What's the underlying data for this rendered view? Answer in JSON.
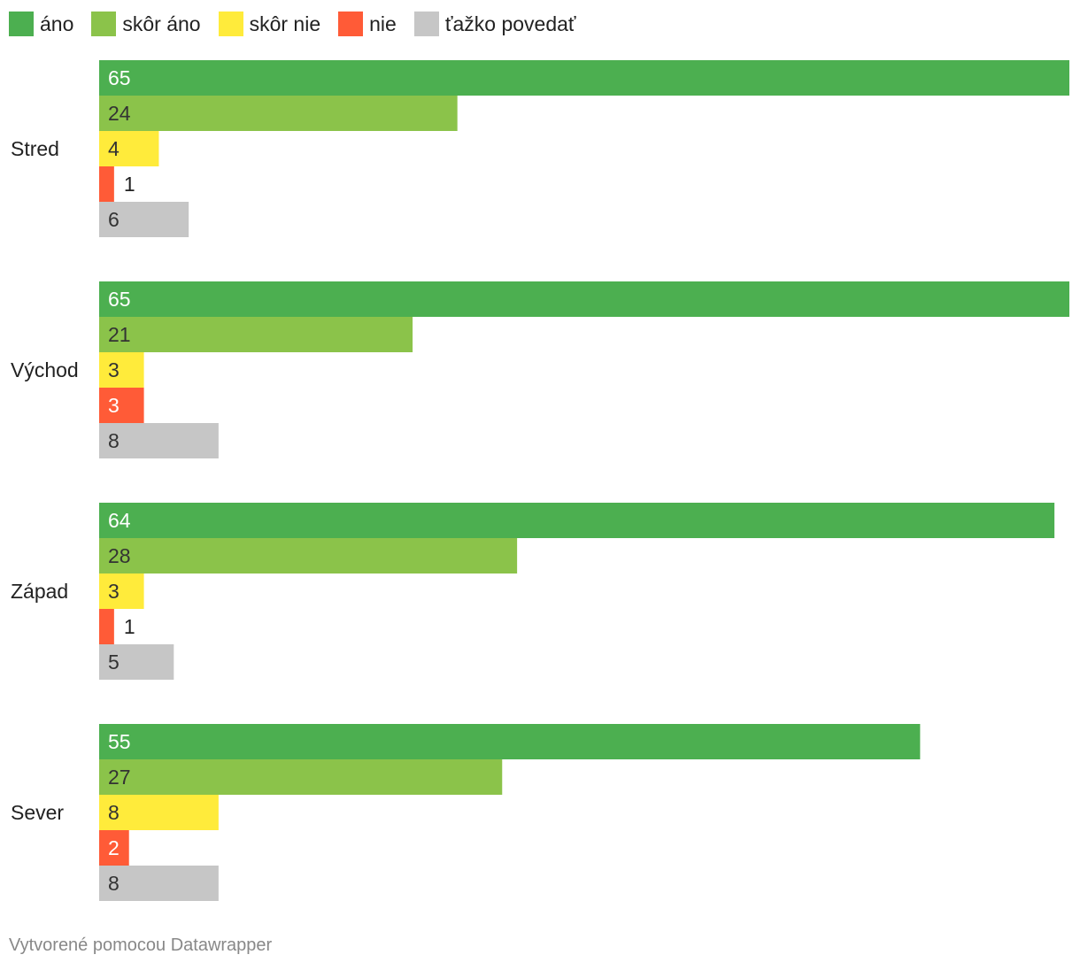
{
  "chart_data": {
    "type": "bar",
    "orientation": "horizontal",
    "categories": [
      "Stred",
      "Východ",
      "Západ",
      "Sever"
    ],
    "series": [
      {
        "name": "áno",
        "color": "#4caf50",
        "values": [
          65,
          65,
          64,
          55
        ]
      },
      {
        "name": "skôr áno",
        "color": "#8bc34a",
        "values": [
          24,
          21,
          28,
          27
        ]
      },
      {
        "name": "skôr nie",
        "color": "#ffeb3b",
        "values": [
          4,
          3,
          3,
          8
        ]
      },
      {
        "name": "nie",
        "color": "#ff5b37",
        "values": [
          1,
          3,
          1,
          2
        ]
      },
      {
        "name": "ťažko povedať",
        "color": "#c6c6c6",
        "values": [
          6,
          8,
          5,
          8
        ]
      }
    ],
    "xlim": [
      0,
      65
    ],
    "grid": false,
    "legend_position": "top-left"
  },
  "footer": {
    "credit": "Vytvorené pomocou Datawrapper"
  }
}
